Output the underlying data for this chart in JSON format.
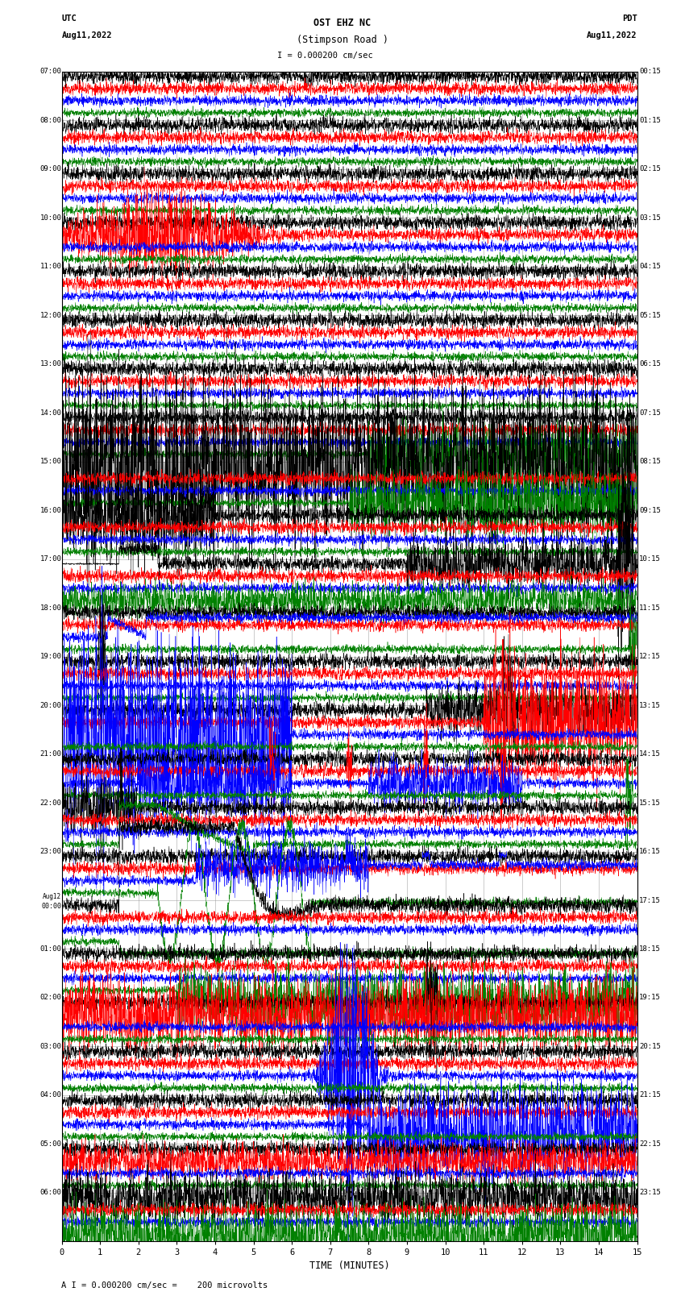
{
  "title_line1": "OST EHZ NC",
  "title_line2": "(Stimpson Road )",
  "title_line3": "I = 0.000200 cm/sec",
  "left_header_line1": "UTC",
  "left_header_line2": "Aug11,2022",
  "right_header_line1": "PDT",
  "right_header_line2": "Aug11,2022",
  "xlabel": "TIME (MINUTES)",
  "footer": "A I = 0.000200 cm/sec =    200 microvolts",
  "bg_color": "#ffffff",
  "trace_colors": [
    "black",
    "red",
    "blue",
    "green"
  ],
  "grid_color": "#999999",
  "xmin": 0,
  "xmax": 15,
  "xticks": [
    0,
    1,
    2,
    3,
    4,
    5,
    6,
    7,
    8,
    9,
    10,
    11,
    12,
    13,
    14,
    15
  ],
  "num_rows": 24,
  "traces_per_row": 4,
  "utc_labels": [
    "07:00",
    "08:00",
    "09:00",
    "10:00",
    "11:00",
    "12:00",
    "13:00",
    "14:00",
    "15:00",
    "16:00",
    "17:00",
    "18:00",
    "19:00",
    "20:00",
    "21:00",
    "22:00",
    "23:00",
    "Aug12\n00:00",
    "01:00",
    "02:00",
    "03:00",
    "04:00",
    "05:00",
    "06:00"
  ],
  "pdt_labels": [
    "00:15",
    "01:15",
    "02:15",
    "03:15",
    "04:15",
    "05:15",
    "06:15",
    "07:15",
    "08:15",
    "09:15",
    "10:15",
    "11:15",
    "12:15",
    "13:15",
    "14:15",
    "15:15",
    "16:15",
    "17:15",
    "18:15",
    "19:15",
    "20:15",
    "21:15",
    "22:15",
    "23:15"
  ],
  "fig_width": 8.5,
  "fig_height": 16.13,
  "dpi": 100
}
